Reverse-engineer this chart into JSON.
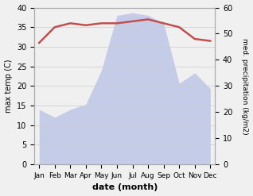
{
  "months": [
    "Jan",
    "Feb",
    "Mar",
    "Apr",
    "May",
    "Jun",
    "Jul",
    "Aug",
    "Sep",
    "Oct",
    "Nov",
    "Dec"
  ],
  "temperature": [
    31,
    35,
    36,
    35.5,
    36,
    36,
    36.5,
    37,
    36,
    35,
    32,
    31.5
  ],
  "precipitation": [
    21,
    18,
    21,
    23,
    36,
    57,
    58,
    57,
    54,
    31,
    35,
    29
  ],
  "temp_color": "#c0504d",
  "precip_fill_color": "#c5cce8",
  "precip_line_color": "#aab4d8",
  "ylabel_left": "max temp (C)",
  "ylabel_right": "med. precipitation (kg/m2)",
  "xlabel": "date (month)",
  "ylim_left": [
    0,
    40
  ],
  "ylim_right": [
    0,
    60
  ],
  "background_color": "#f0f0f0"
}
